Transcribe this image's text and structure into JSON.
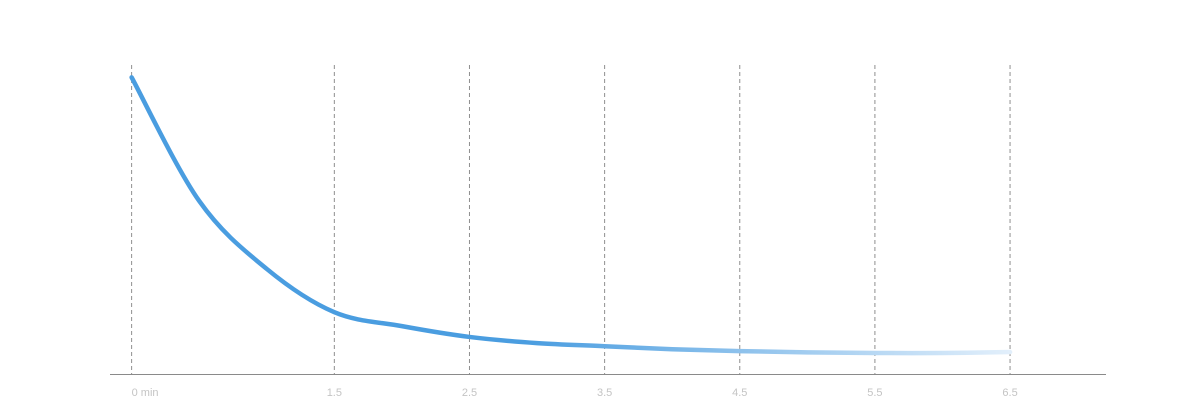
{
  "chart_data": {
    "type": "line",
    "x": [
      0,
      0.5,
      1,
      1.5,
      2,
      2.5,
      3,
      3.5,
      4,
      4.5,
      5,
      5.5,
      6,
      6.5
    ],
    "values": [
      96,
      56,
      34,
      20,
      15.5,
      12,
      10,
      9,
      8,
      7.4,
      7,
      6.8,
      6.8,
      7.1
    ],
    "xlim": [
      -0.16,
      7.21
    ],
    "ylim": [
      0,
      100
    ],
    "xticks": [
      {
        "value": 0,
        "label": "0 min"
      },
      1.5,
      2.5,
      3.5,
      4.5,
      5.5,
      6.5
    ],
    "grid": true,
    "gradient": [
      "#4a9de0",
      "#e2effb"
    ]
  }
}
